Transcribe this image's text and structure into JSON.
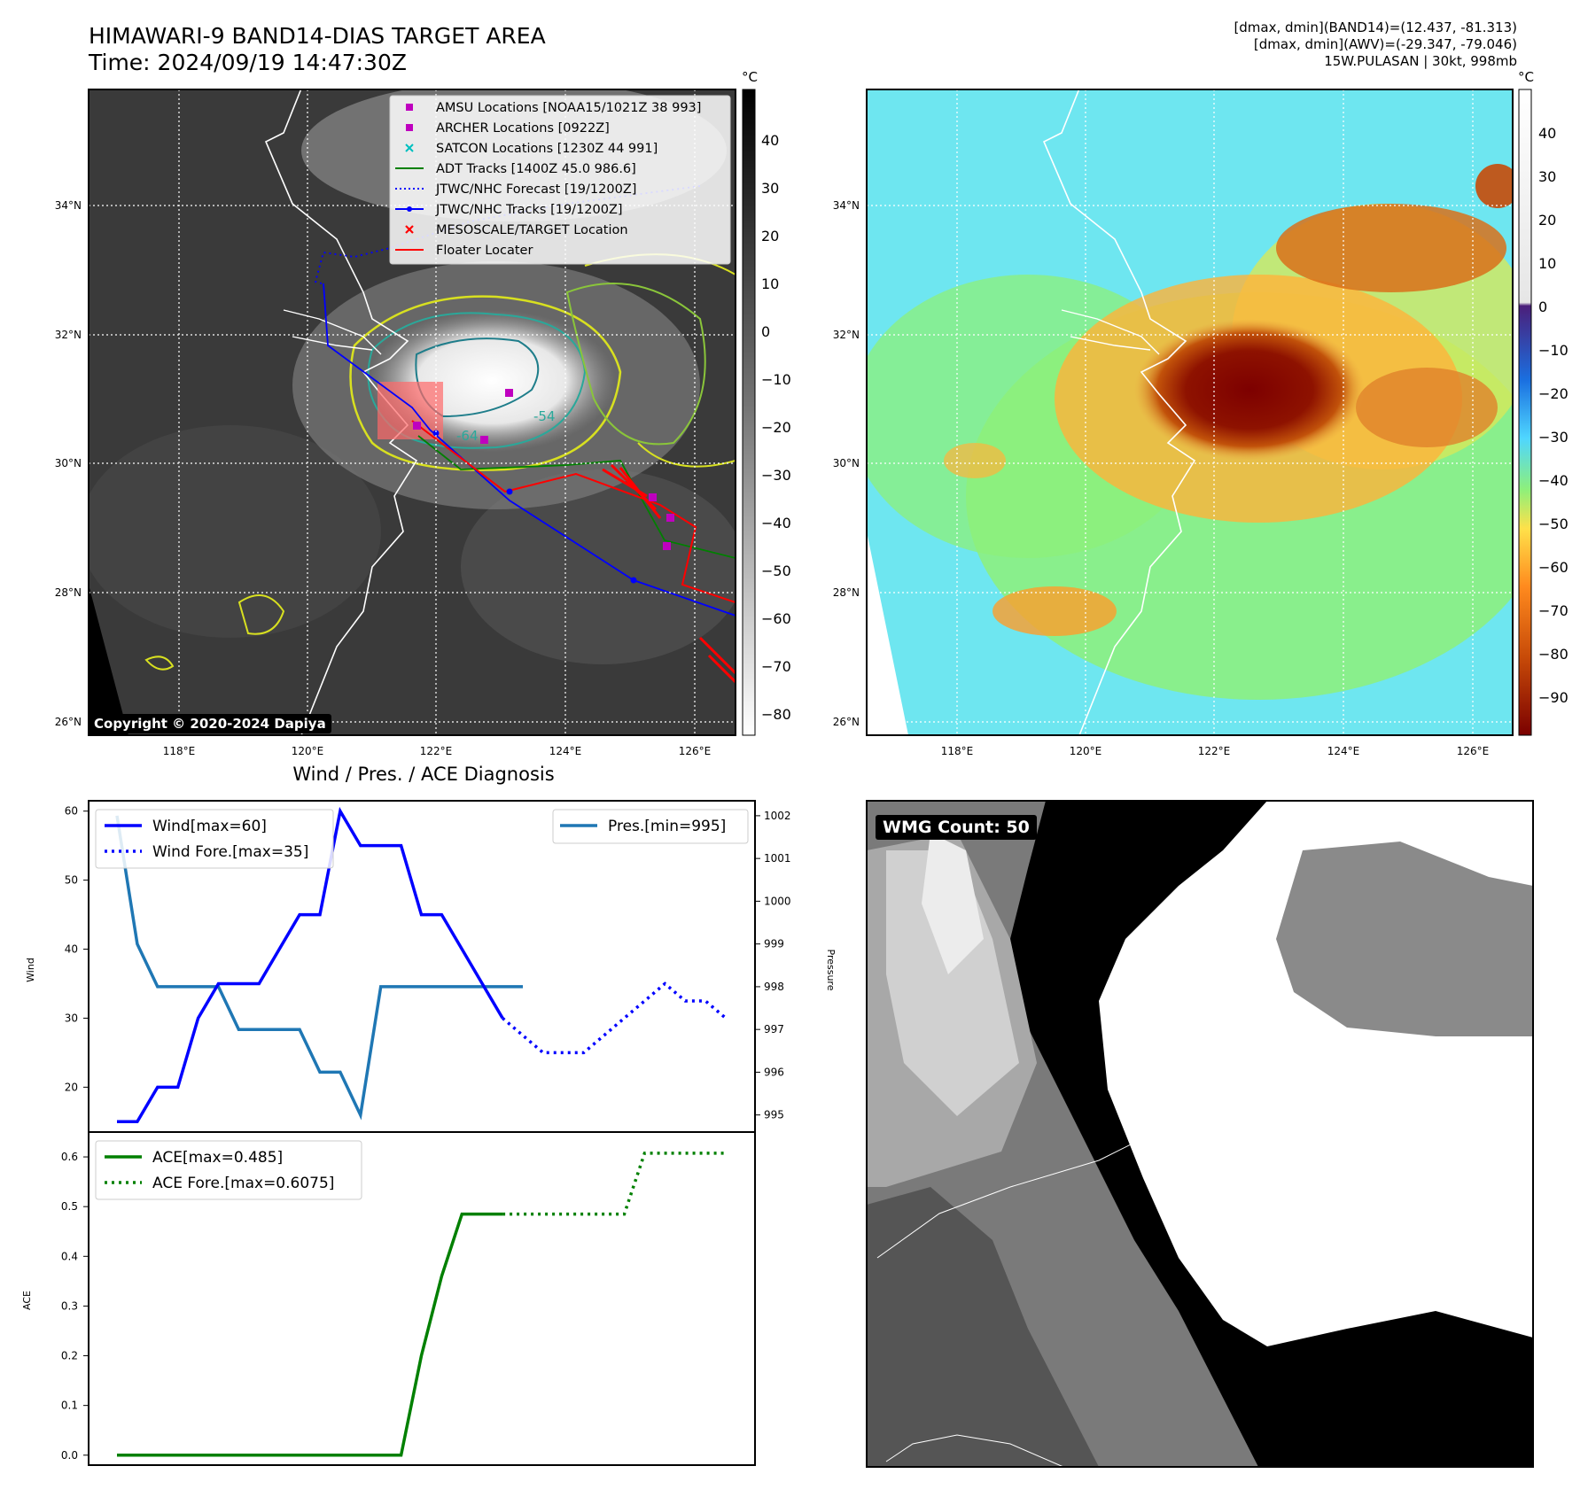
{
  "header": {
    "title_line1": "HIMAWARI-9 BAND14-DIAS TARGET AREA",
    "title_line2": "Time: 2024/09/19 14:47:30Z",
    "info_line1": "[dmax, dmin](BAND14)=(12.437, -81.313)",
    "info_line2": "[dmax, dmin](AWV)=(-29.347, -79.046)",
    "info_line3": "15W.PULASAN | 30kt, 998mb"
  },
  "copyright": "Copyright © 2020-2024 Dapiya",
  "wmg_label": "WMG Count: 50",
  "map": {
    "lat_labels": [
      "34°N",
      "32°N",
      "30°N",
      "28°N",
      "26°N"
    ],
    "lon_labels": [
      "118°E",
      "120°E",
      "122°E",
      "124°E",
      "126°E"
    ],
    "contour_labels": [
      "-64",
      "-54"
    ],
    "colors": {
      "adt": "#008000",
      "jtwc": "#0000ff",
      "floater": "#ff0000",
      "amsu": "#bf00bf",
      "satcon": "#00bfbf"
    }
  },
  "legend_map": [
    {
      "label": "AMSU Locations [NOAA15/1021Z 38 993]",
      "marker": "square",
      "color": "#bf00bf"
    },
    {
      "label": "ARCHER Locations [0922Z]",
      "marker": "square",
      "color": "#bf00bf"
    },
    {
      "label": "SATCON Locations [1230Z 44 991]",
      "marker": "x",
      "color": "#00bfbf"
    },
    {
      "label": "ADT Tracks [1400Z 45.0 986.6]",
      "marker": "line",
      "color": "#008000"
    },
    {
      "label": "JTWC/NHC Forecast [19/1200Z]",
      "marker": "dotted",
      "color": "#0000ff"
    },
    {
      "label": "JTWC/NHC Tracks [19/1200Z]",
      "marker": "dotline",
      "color": "#0000ff"
    },
    {
      "label": "MESOSCALE/TARGET Location",
      "marker": "x",
      "color": "#ff0000"
    },
    {
      "label": "Floater Locater",
      "marker": "line",
      "color": "#ff0000"
    }
  ],
  "colorbar_left": {
    "unit": "°C",
    "ticks": [
      "40",
      "30",
      "20",
      "10",
      "0",
      "−10",
      "−20",
      "−30",
      "−40",
      "−50",
      "−60",
      "−70",
      "−80"
    ]
  },
  "colorbar_right": {
    "unit": "°C",
    "ticks": [
      "40",
      "30",
      "20",
      "10",
      "0",
      "−10",
      "−20",
      "−30",
      "−40",
      "−50",
      "−60",
      "−70",
      "−80",
      "−90"
    ]
  },
  "diagnosis_title": "Wind / Pres. / ACE Diagnosis",
  "chart_data": [
    {
      "type": "line",
      "title": "Wind / Pres. / ACE Diagnosis",
      "ylabel": "Wind",
      "y2label": "Pressure",
      "x": [
        0,
        1,
        2,
        3,
        4,
        5,
        6,
        7,
        8,
        9,
        10,
        11,
        12,
        13,
        14,
        15,
        16,
        17,
        18,
        19,
        20
      ],
      "ylim": [
        13.5,
        61.5
      ],
      "y2lim": [
        994.6,
        1002.35
      ],
      "yticks": [
        "60",
        "50",
        "40",
        "30",
        "20"
      ],
      "y2ticks": [
        "1002",
        "1001",
        "1000",
        "999",
        "998",
        "997",
        "996",
        "995"
      ],
      "series": [
        {
          "name": "Wind[max=60]",
          "axis": "left",
          "style": "solid",
          "color": "#0000ff",
          "x": [
            0,
            1,
            2,
            3,
            4,
            5,
            6,
            7,
            8,
            9,
            10,
            11,
            12,
            13,
            14,
            15,
            16,
            17,
            18,
            19,
            20
          ],
          "values": [
            15,
            15,
            20,
            20,
            30,
            35,
            35,
            35,
            40,
            45,
            45,
            60,
            55,
            55,
            55,
            45,
            45,
            40,
            35,
            30,
            null
          ]
        },
        {
          "name": "Wind Fore.[max=35]",
          "axis": "left",
          "style": "dotted",
          "color": "#0000ff",
          "x": [
            19,
            20,
            21,
            22,
            23,
            24,
            25,
            26,
            27,
            28,
            29,
            30
          ],
          "values": [
            30,
            27.5,
            25,
            25,
            25,
            27.5,
            30,
            32.5,
            35,
            32.5,
            32.5,
            30
          ]
        },
        {
          "name": "Pres.[min=995]",
          "axis": "right",
          "style": "solid",
          "color": "#1f77b4",
          "x": [
            0,
            1,
            2,
            3,
            4,
            5,
            6,
            7,
            8,
            9,
            10,
            11,
            12,
            13,
            14,
            15,
            16,
            17,
            18,
            19,
            20
          ],
          "values": [
            1002,
            999,
            998,
            998,
            998,
            998,
            997,
            997,
            997,
            997,
            996,
            996,
            995,
            998,
            998,
            998,
            998,
            998,
            998,
            998,
            998
          ]
        }
      ]
    },
    {
      "type": "line",
      "ylabel": "ACE",
      "ylim": [
        -0.02,
        0.65
      ],
      "yticks": [
        "0.6",
        "0.5",
        "0.4",
        "0.3",
        "0.2",
        "0.1",
        "0.0"
      ],
      "series": [
        {
          "name": "ACE[max=0.485]",
          "style": "solid",
          "color": "#008000",
          "x": [
            0,
            1,
            2,
            3,
            4,
            5,
            6,
            7,
            8,
            9,
            10,
            11,
            12,
            13,
            14,
            15,
            16,
            17,
            18,
            19
          ],
          "values": [
            0,
            0,
            0,
            0,
            0,
            0,
            0,
            0,
            0,
            0,
            0,
            0,
            0,
            0,
            0,
            0.2,
            0.36,
            0.485,
            0.485,
            0.485
          ]
        },
        {
          "name": "ACE Fore.[max=0.6075]",
          "style": "dotted",
          "color": "#008000",
          "x": [
            19,
            20,
            21,
            22,
            23,
            24,
            25,
            26,
            27,
            28,
            29,
            30
          ],
          "values": [
            0.485,
            0.485,
            0.485,
            0.485,
            0.485,
            0.485,
            0.485,
            0.6075,
            0.6075,
            0.6075,
            0.6075,
            0.6075
          ]
        }
      ]
    }
  ]
}
